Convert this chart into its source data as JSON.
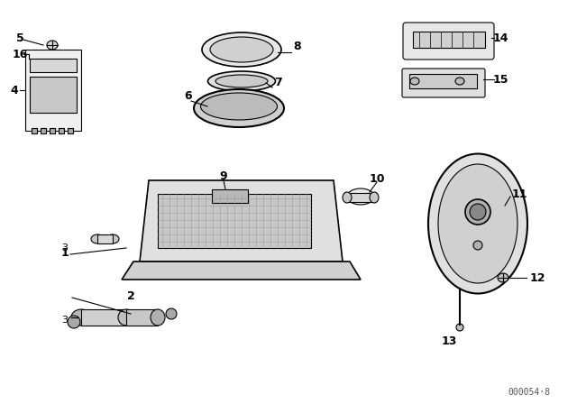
{
  "title": "",
  "background_color": "#ffffff",
  "line_color": "#000000",
  "label_color": "#000000",
  "watermark": "000054·8",
  "components": {
    "part1_label": "1",
    "part2_label": "2",
    "part3_label": "3",
    "part4_label": "4",
    "part5_label": "5",
    "part6_label": "6",
    "part7_label": "7",
    "part8_label": "8",
    "part9_label": "9",
    "part10_label": "10",
    "part11_label": "11",
    "part12_label": "12",
    "part13_label": "13",
    "part14_label": "14",
    "part15_label": "15",
    "part16_label": "16"
  },
  "figsize": [
    6.4,
    4.48
  ],
  "dpi": 100
}
